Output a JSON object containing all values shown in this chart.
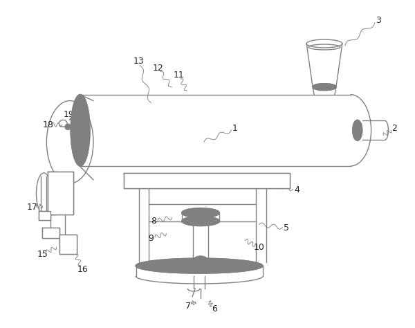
{
  "bg_color": "#ffffff",
  "line_color": "#808080",
  "lw": 1.0,
  "figsize": [
    6.0,
    4.74
  ],
  "dpi": 100,
  "labels": [
    [
      "1",
      340,
      185,
      295,
      205
    ],
    [
      "2",
      572,
      185,
      556,
      195
    ],
    [
      "3",
      548,
      28,
      500,
      65
    ],
    [
      "4",
      430,
      275,
      400,
      268
    ],
    [
      "5",
      415,
      330,
      375,
      325
    ],
    [
      "6",
      310,
      448,
      302,
      437
    ],
    [
      "7",
      272,
      444,
      282,
      437
    ],
    [
      "8",
      222,
      320,
      248,
      315
    ],
    [
      "9",
      218,
      345,
      240,
      338
    ],
    [
      "10",
      375,
      358,
      355,
      348
    ],
    [
      "11",
      258,
      108,
      270,
      130
    ],
    [
      "12",
      228,
      98,
      248,
      125
    ],
    [
      "13",
      200,
      88,
      218,
      148
    ],
    [
      "15",
      60,
      368,
      80,
      358
    ],
    [
      "16",
      118,
      390,
      108,
      368
    ],
    [
      "17",
      45,
      300,
      60,
      298
    ],
    [
      "18",
      68,
      180,
      88,
      180
    ],
    [
      "19",
      98,
      165,
      102,
      172
    ]
  ]
}
